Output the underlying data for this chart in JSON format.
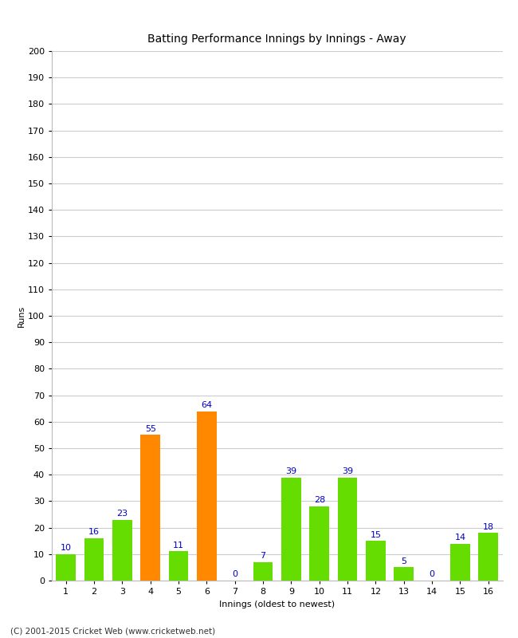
{
  "title": "Batting Performance Innings by Innings - Away",
  "xlabel": "Innings (oldest to newest)",
  "ylabel": "Runs",
  "categories": [
    1,
    2,
    3,
    4,
    5,
    6,
    7,
    8,
    9,
    10,
    11,
    12,
    13,
    14,
    15,
    16
  ],
  "values": [
    10,
    16,
    23,
    55,
    11,
    64,
    0,
    7,
    39,
    28,
    39,
    15,
    5,
    0,
    14,
    18
  ],
  "bar_colors": [
    "#66dd00",
    "#66dd00",
    "#66dd00",
    "#ff8800",
    "#66dd00",
    "#ff8800",
    "#66dd00",
    "#66dd00",
    "#66dd00",
    "#66dd00",
    "#66dd00",
    "#66dd00",
    "#66dd00",
    "#66dd00",
    "#66dd00",
    "#66dd00"
  ],
  "ylim": [
    0,
    200
  ],
  "ytick_step": 10,
  "label_color": "#0000cc",
  "label_fontsize": 8,
  "axis_fontsize": 8,
  "title_fontsize": 10,
  "background_color": "#ffffff",
  "grid_color": "#cccccc",
  "footer": "(C) 2001-2015 Cricket Web (www.cricketweb.net)"
}
